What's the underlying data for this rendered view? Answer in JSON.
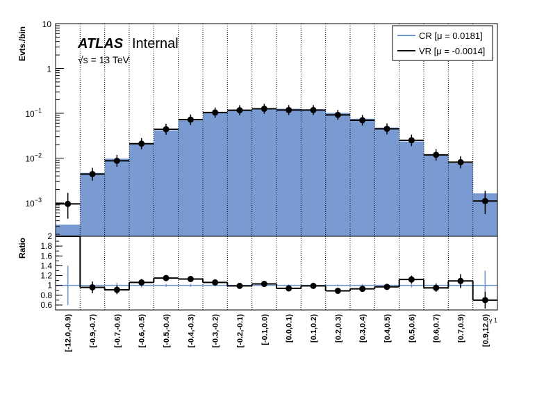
{
  "chart_data": {
    "type": "bar",
    "categories": [
      "[-12.0,-0.9)",
      "[-0.9,-0.7)",
      "[-0.7,-0.6)",
      "[-0.6,-0.5)",
      "[-0.5,-0.4)",
      "[-0.4,-0.3)",
      "[-0.3,-0.2)",
      "[-0.2,-0.1)",
      "[-0.1,0.0)",
      "[0.0,0.1)",
      "[0.1,0.2)",
      "[0.2,0.3)",
      "[0.3,0.4)",
      "[0.4,0.5)",
      "[0.5,0.6)",
      "[0.6,0.7)",
      "[0.7,0.9)",
      "[0.9,12.0)"
    ],
    "xlabel_suffix": "γ 1",
    "top_panel": {
      "ylabel": "Evts./bin",
      "yscale": "log",
      "ylim": [
        0.00018,
        10
      ],
      "yticks": [
        {
          "value": 10,
          "label": "10"
        },
        {
          "value": 1,
          "label": "1"
        },
        {
          "value": 0.1,
          "label": "10",
          "sup": "−1"
        },
        {
          "value": 0.01,
          "label": "10",
          "sup": "−2"
        },
        {
          "value": 0.001,
          "label": "10",
          "sup": "−3"
        }
      ],
      "grid_x": true,
      "series": [
        {
          "name": "CR [μ = 0.0181]",
          "style": "filled-hist",
          "color": "#7a9bd2",
          "line_color": "#6f94cc",
          "values": [
            0.00032,
            0.0046,
            0.0095,
            0.021,
            0.041,
            0.068,
            0.1,
            0.118,
            0.124,
            0.124,
            0.12,
            0.1,
            0.074,
            0.047,
            0.023,
            0.012,
            0.0075,
            0.0016
          ]
        },
        {
          "name": "VR [μ = -0.0014]",
          "style": "step-points",
          "color": "#000000",
          "values": [
            0.00095,
            0.0044,
            0.0087,
            0.021,
            0.044,
            0.072,
            0.104,
            0.117,
            0.126,
            0.118,
            0.118,
            0.092,
            0.07,
            0.045,
            0.025,
            0.0118,
            0.0081,
            0.0011
          ],
          "err_low": [
            0.0004,
            0.0005,
            0.0008,
            0.0015,
            0.003,
            0.004,
            0.005,
            0.005,
            0.005,
            0.005,
            0.005,
            0.004,
            0.004,
            0.003,
            0.002,
            0.001,
            0.0008,
            0.0004
          ],
          "err_high": [
            0.0004,
            0.0005,
            0.0008,
            0.0015,
            0.003,
            0.004,
            0.005,
            0.005,
            0.005,
            0.005,
            0.005,
            0.004,
            0.004,
            0.003,
            0.002,
            0.001,
            0.0008,
            0.0004
          ]
        }
      ]
    },
    "bottom_panel": {
      "ylabel": "Ratio",
      "ylim": [
        0.5,
        2.0
      ],
      "yticks": [
        {
          "value": 2,
          "label": "2"
        },
        {
          "value": 1.8,
          "label": "1.8"
        },
        {
          "value": 1.6,
          "label": "1.6"
        },
        {
          "value": 1.4,
          "label": "1.4"
        },
        {
          "value": 1.2,
          "label": "1.2"
        },
        {
          "value": 1,
          "label": "1"
        },
        {
          "value": 0.8,
          "label": "0.8"
        },
        {
          "value": 0.6,
          "label": "0.6"
        }
      ],
      "reference_line": 1.0,
      "ratio_values": [
        3.0,
        0.96,
        0.91,
        1.06,
        1.15,
        1.13,
        1.06,
        0.99,
        1.03,
        0.94,
        0.99,
        0.89,
        0.93,
        0.97,
        1.12,
        0.95,
        1.09,
        0.7
      ],
      "ratio_err": [
        0.3,
        0.12,
        0.09,
        0.07,
        0.05,
        0.05,
        0.04,
        0.04,
        0.03,
        0.04,
        0.04,
        0.04,
        0.04,
        0.05,
        0.08,
        0.08,
        0.14,
        0.17
      ],
      "ref_err": [
        0.4,
        0.05,
        0.05,
        0.04,
        0.03,
        0.03,
        0.02,
        0.02,
        0.02,
        0.02,
        0.02,
        0.02,
        0.03,
        0.03,
        0.04,
        0.05,
        0.06,
        0.3
      ]
    }
  },
  "labels": {
    "atlas": "ATLAS",
    "internal": "Internal",
    "energy": "√s = 13 TeV"
  },
  "legend": [
    {
      "label": "CR [μ = 0.0181]",
      "color": "#6f94cc"
    },
    {
      "label": "VR [μ = -0.0014]",
      "color": "#000000"
    }
  ]
}
